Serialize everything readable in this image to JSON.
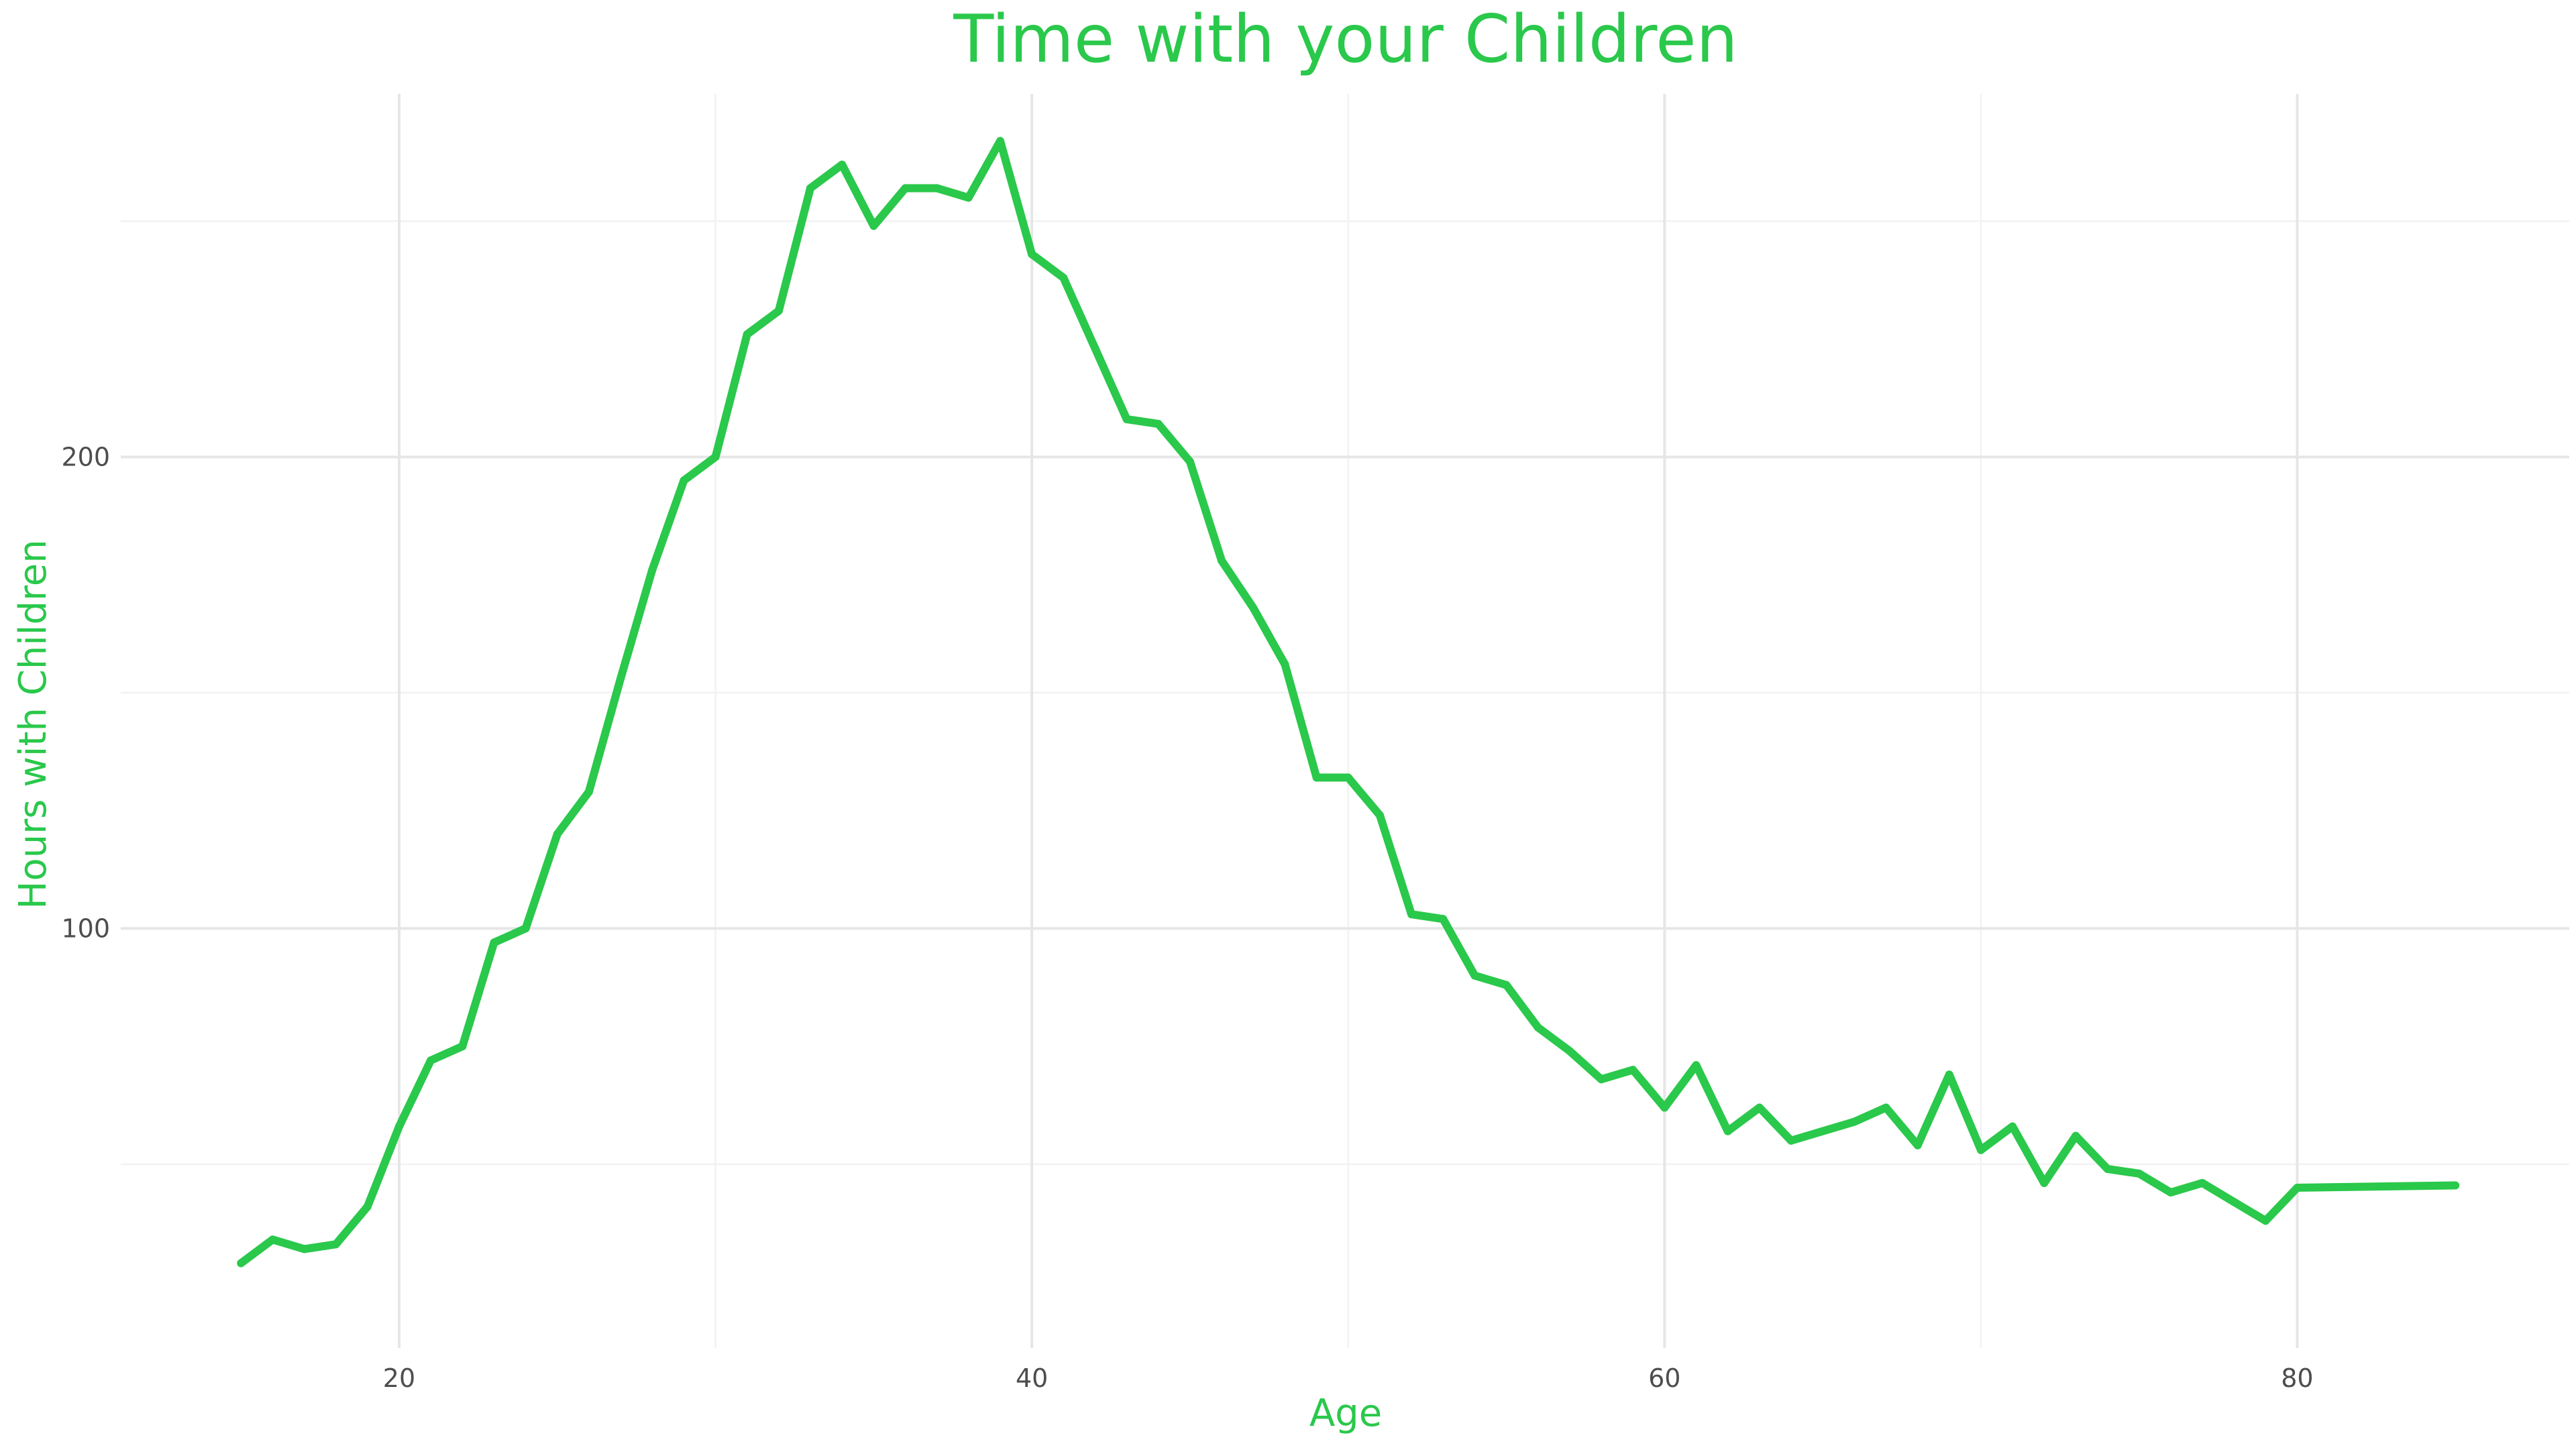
{
  "colors": {
    "accent": "#2ac84b",
    "grid_major": "#e6e6e6",
    "grid_minor": "#f2f2f2",
    "tick_text": "#4d4d4d",
    "background": "#ffffff"
  },
  "chart_data": {
    "type": "line",
    "title": "Time with your Children",
    "xlabel": "Age",
    "ylabel": "Hours with Children",
    "xlim": [
      11.2,
      88.6
    ],
    "ylim": [
      11,
      277
    ],
    "x_major_ticks": [
      20,
      40,
      60,
      80
    ],
    "x_minor_ticks": [
      30,
      50,
      70
    ],
    "y_major_ticks": [
      100,
      200
    ],
    "y_minor_ticks": [
      50,
      150,
      250
    ],
    "x_tick_labels": [
      "20",
      "40",
      "60",
      "80"
    ],
    "y_tick_labels": [
      "100",
      "200"
    ],
    "grid": true,
    "legend": "none",
    "series": [
      {
        "x": [
          15,
          16,
          17,
          18,
          19,
          20,
          21,
          22,
          23,
          24,
          25,
          26,
          27,
          28,
          29,
          30,
          31,
          32,
          33,
          34,
          35,
          36,
          37,
          38,
          39,
          40,
          41,
          42,
          43,
          44,
          45,
          46,
          47,
          48,
          49,
          50,
          51,
          52,
          53,
          54,
          55,
          56,
          57,
          58,
          59,
          60,
          61,
          62,
          63,
          64,
          65,
          66,
          67,
          68,
          69,
          70,
          71,
          72,
          73,
          74,
          75,
          76,
          77,
          78,
          79,
          80,
          85
        ],
        "values": [
          29,
          34,
          32,
          33,
          41,
          58,
          72,
          75,
          97,
          100,
          120,
          129,
          153,
          176,
          195,
          200,
          226,
          231,
          257,
          262,
          249,
          257,
          257,
          255,
          267,
          243,
          238,
          223,
          208,
          207,
          199,
          178,
          168,
          156,
          132,
          132,
          124,
          103,
          102,
          90,
          88,
          79,
          74,
          68,
          70,
          62,
          71,
          57,
          62,
          55,
          57,
          59,
          62,
          54,
          69,
          53,
          58,
          46,
          56,
          49,
          48,
          44,
          46,
          42,
          38,
          45,
          45.5
        ]
      }
    ]
  }
}
